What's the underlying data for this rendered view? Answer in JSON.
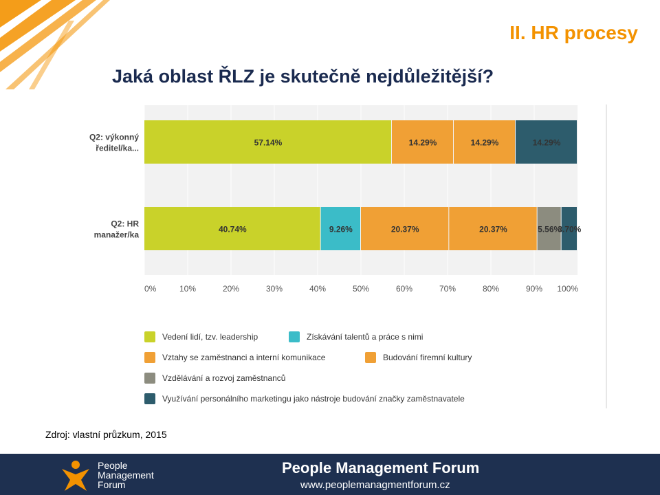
{
  "header": {
    "section_title": "II. HR procesy",
    "question": "Jaká oblast ŘLZ je skutečně nejdůležitější?"
  },
  "colors": {
    "lime": "#c9d22a",
    "teal": "#3bbcc8",
    "orange": "#f0a035",
    "gray": "#8c8c7f",
    "navy": "#2d5c6c",
    "footer": "#1e3050",
    "accent": "#f39200"
  },
  "chart_data": {
    "type": "bar",
    "orientation": "horizontal",
    "stacked": true,
    "categories": [
      "Q2: výkonný ředitel/ka...",
      "Q2: HR manažer/ka"
    ],
    "category_lines": [
      [
        "Q2: výkonný",
        "ředitel/ka..."
      ],
      [
        "Q2: HR",
        "manažer/ka"
      ]
    ],
    "xlim": [
      0,
      100
    ],
    "x_ticks": [
      "0%",
      "10%",
      "20%",
      "30%",
      "40%",
      "50%",
      "60%",
      "70%",
      "80%",
      "90%",
      "100%"
    ],
    "grid": true,
    "legend_position": "bottom",
    "series": [
      {
        "name": "Vedení lidí, tzv. leadership",
        "color": "#c9d22a",
        "values": [
          57.14,
          40.74
        ],
        "labels": [
          "57.14%",
          "40.74%"
        ]
      },
      {
        "name": "Získávání talentů a práce s nimi",
        "color": "#3bbcc8",
        "values": [
          0,
          9.26
        ],
        "labels": [
          "",
          "9.26%"
        ]
      },
      {
        "name": "Vztahy se zaměstnanci a interní komunikace",
        "color": "#f0a035",
        "values": [
          14.29,
          20.37
        ],
        "labels": [
          "14.29%",
          "20.37%"
        ]
      },
      {
        "name": "Budování firemní kultury",
        "color": "#f0a035",
        "values": [
          14.29,
          20.37
        ],
        "labels": [
          "14.29%",
          "20.37%"
        ]
      },
      {
        "name": "Vzdělávání a rozvoj zaměstnanců",
        "color": "#8c8c7f",
        "values": [
          0,
          5.56
        ],
        "labels": [
          "",
          "5.56%"
        ]
      },
      {
        "name": "Využívání personálního marketingu jako nástroje budování značky zaměstnavatele",
        "color": "#2d5c6c",
        "values": [
          14.29,
          3.7
        ],
        "labels": [
          "14.29%",
          "3.70%"
        ]
      }
    ]
  },
  "source": "Zdroj: vlastní průzkum, 2015",
  "footer": {
    "logo_lines": [
      "People",
      "Management",
      "Forum"
    ],
    "title": "People Management Forum",
    "url": "www.peoplemanagmentforum.cz"
  }
}
